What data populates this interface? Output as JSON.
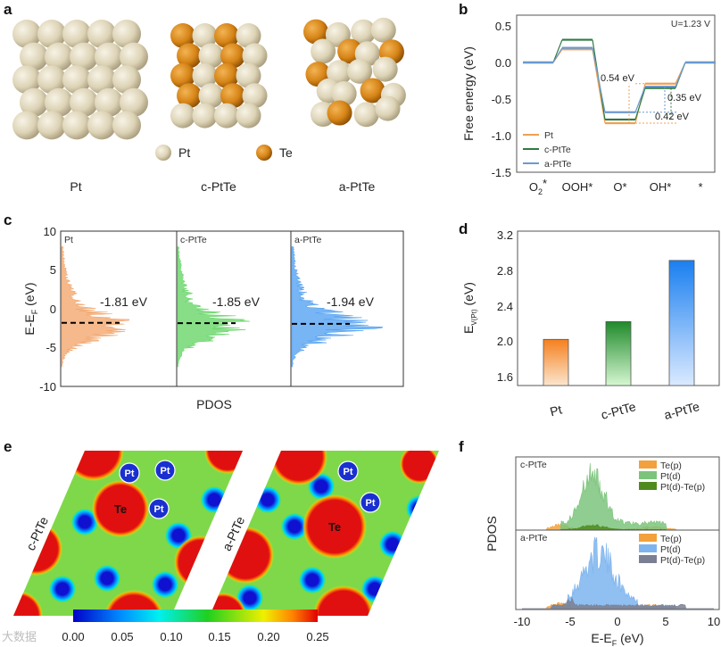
{
  "panel_labels": {
    "a": "a",
    "b": "b",
    "c": "c",
    "d": "d",
    "e": "e",
    "f": "f"
  },
  "panel_a": {
    "legend": [
      {
        "label": "Pt",
        "color": "#e3dcc4"
      },
      {
        "label": "Te",
        "color": "#d98a1c"
      }
    ],
    "structures": [
      "Pt",
      "c-PtTe",
      "a-PtTe"
    ]
  },
  "panel_b": {
    "condition": "U=1.23 V",
    "ylabel": "Free energy (eV)",
    "yticks": [
      "0.5",
      "0.0",
      "-0.5",
      "-1.0",
      "-1.5"
    ],
    "xlabels": [
      {
        "main": "O",
        "sub": "2",
        "sup": "*"
      },
      {
        "main": "OOH*",
        "sub": "",
        "sup": ""
      },
      {
        "main": "O*",
        "sub": "",
        "sup": ""
      },
      {
        "main": "OH*",
        "sub": "",
        "sup": ""
      },
      {
        "main": "*",
        "sub": "",
        "sup": ""
      }
    ],
    "annotations": [
      "0.54 eV",
      "0.35 eV",
      "0.42 eV"
    ]
  },
  "panel_c": {
    "ylabel_main": "E-E",
    "ylabel_sub": "F",
    "ylabel_unit": " (eV)",
    "yticks": [
      "10",
      "5",
      "0",
      "-5",
      "-10"
    ],
    "xlabel": "PDOS",
    "subpanels": [
      {
        "name": "Pt",
        "center_label": "-1.81 eV",
        "center": -1.81,
        "color": "#f2a266"
      },
      {
        "name": "c-PtTe",
        "center_label": "-1.85 eV",
        "center": -1.85,
        "color": "#5fd35f"
      },
      {
        "name": "a-PtTe",
        "center_label": "-1.94 eV",
        "center": -1.94,
        "color": "#4a9cf0"
      }
    ]
  },
  "panel_d": {
    "ylabel_main": "E",
    "ylabel_sub": "V(Pt)",
    "ylabel_unit": " (eV)",
    "yticks": [
      "3.2",
      "2.8",
      "2.4",
      "2.0",
      "1.6"
    ]
  },
  "panel_e": {
    "maps": [
      "c-PtTe",
      "a-PtTe"
    ],
    "atom_labels": {
      "pt": "Pt",
      "te": "Te"
    },
    "colorbar_ticks": [
      "0.00",
      "0.05",
      "0.10",
      "0.15",
      "0.20",
      "0.25"
    ]
  },
  "panel_f": {
    "ylabel": "PDOS",
    "xlabel_main": "E-E",
    "xlabel_sub": "F",
    "xlabel_unit": " (eV)",
    "xticks": [
      "-10",
      "-5",
      "0",
      "5",
      "10"
    ],
    "top": {
      "name": "c-PtTe",
      "legend": [
        {
          "label": "Te(p)",
          "color": "#f2a13c"
        },
        {
          "label": "Pt(d)",
          "color": "#7cc47c"
        },
        {
          "label": "Pt(d)-Te(p)",
          "color": "#4f8a1e"
        }
      ]
    },
    "bottom": {
      "name": "a-PtTe",
      "legend": [
        {
          "label": "Te(p)",
          "color": "#f2a13c"
        },
        {
          "label": "Pt(d)",
          "color": "#7db4ee"
        },
        {
          "label": "Pt(d)-Te(p)",
          "color": "#7a7f92"
        }
      ]
    }
  },
  "watermark": "大数据",
  "chart_data": [
    {
      "type": "line",
      "title": "b",
      "xlabel": "",
      "ylabel": "Free energy (eV)",
      "ylim": [
        -1.5,
        0.5
      ],
      "categories": [
        "O2*",
        "OOH*",
        "O*",
        "OH*",
        "*"
      ],
      "series": [
        {
          "name": "Pt",
          "color": "#f0a050",
          "values": [
            0,
            0.18,
            -0.83,
            -0.29,
            0
          ]
        },
        {
          "name": "c-PtTe",
          "color": "#2f7a45",
          "values": [
            0,
            0.31,
            -0.78,
            -0.35,
            0
          ]
        },
        {
          "name": "a-PtTe",
          "color": "#6a9ad0",
          "values": [
            0,
            0.2,
            -0.68,
            -0.33,
            0
          ]
        }
      ],
      "legend": "bottom-left"
    },
    {
      "type": "bar",
      "title": "d",
      "categories": [
        "Pt",
        "c-PtTe",
        "a-PtTe"
      ],
      "values": [
        2.02,
        2.22,
        2.91
      ],
      "colors": [
        "#f5801e",
        "#1f8a2a",
        "#1a7ff0"
      ],
      "ylabel": "E_V(Pt) (eV)",
      "ylim": [
        1.5,
        3.25
      ]
    }
  ]
}
